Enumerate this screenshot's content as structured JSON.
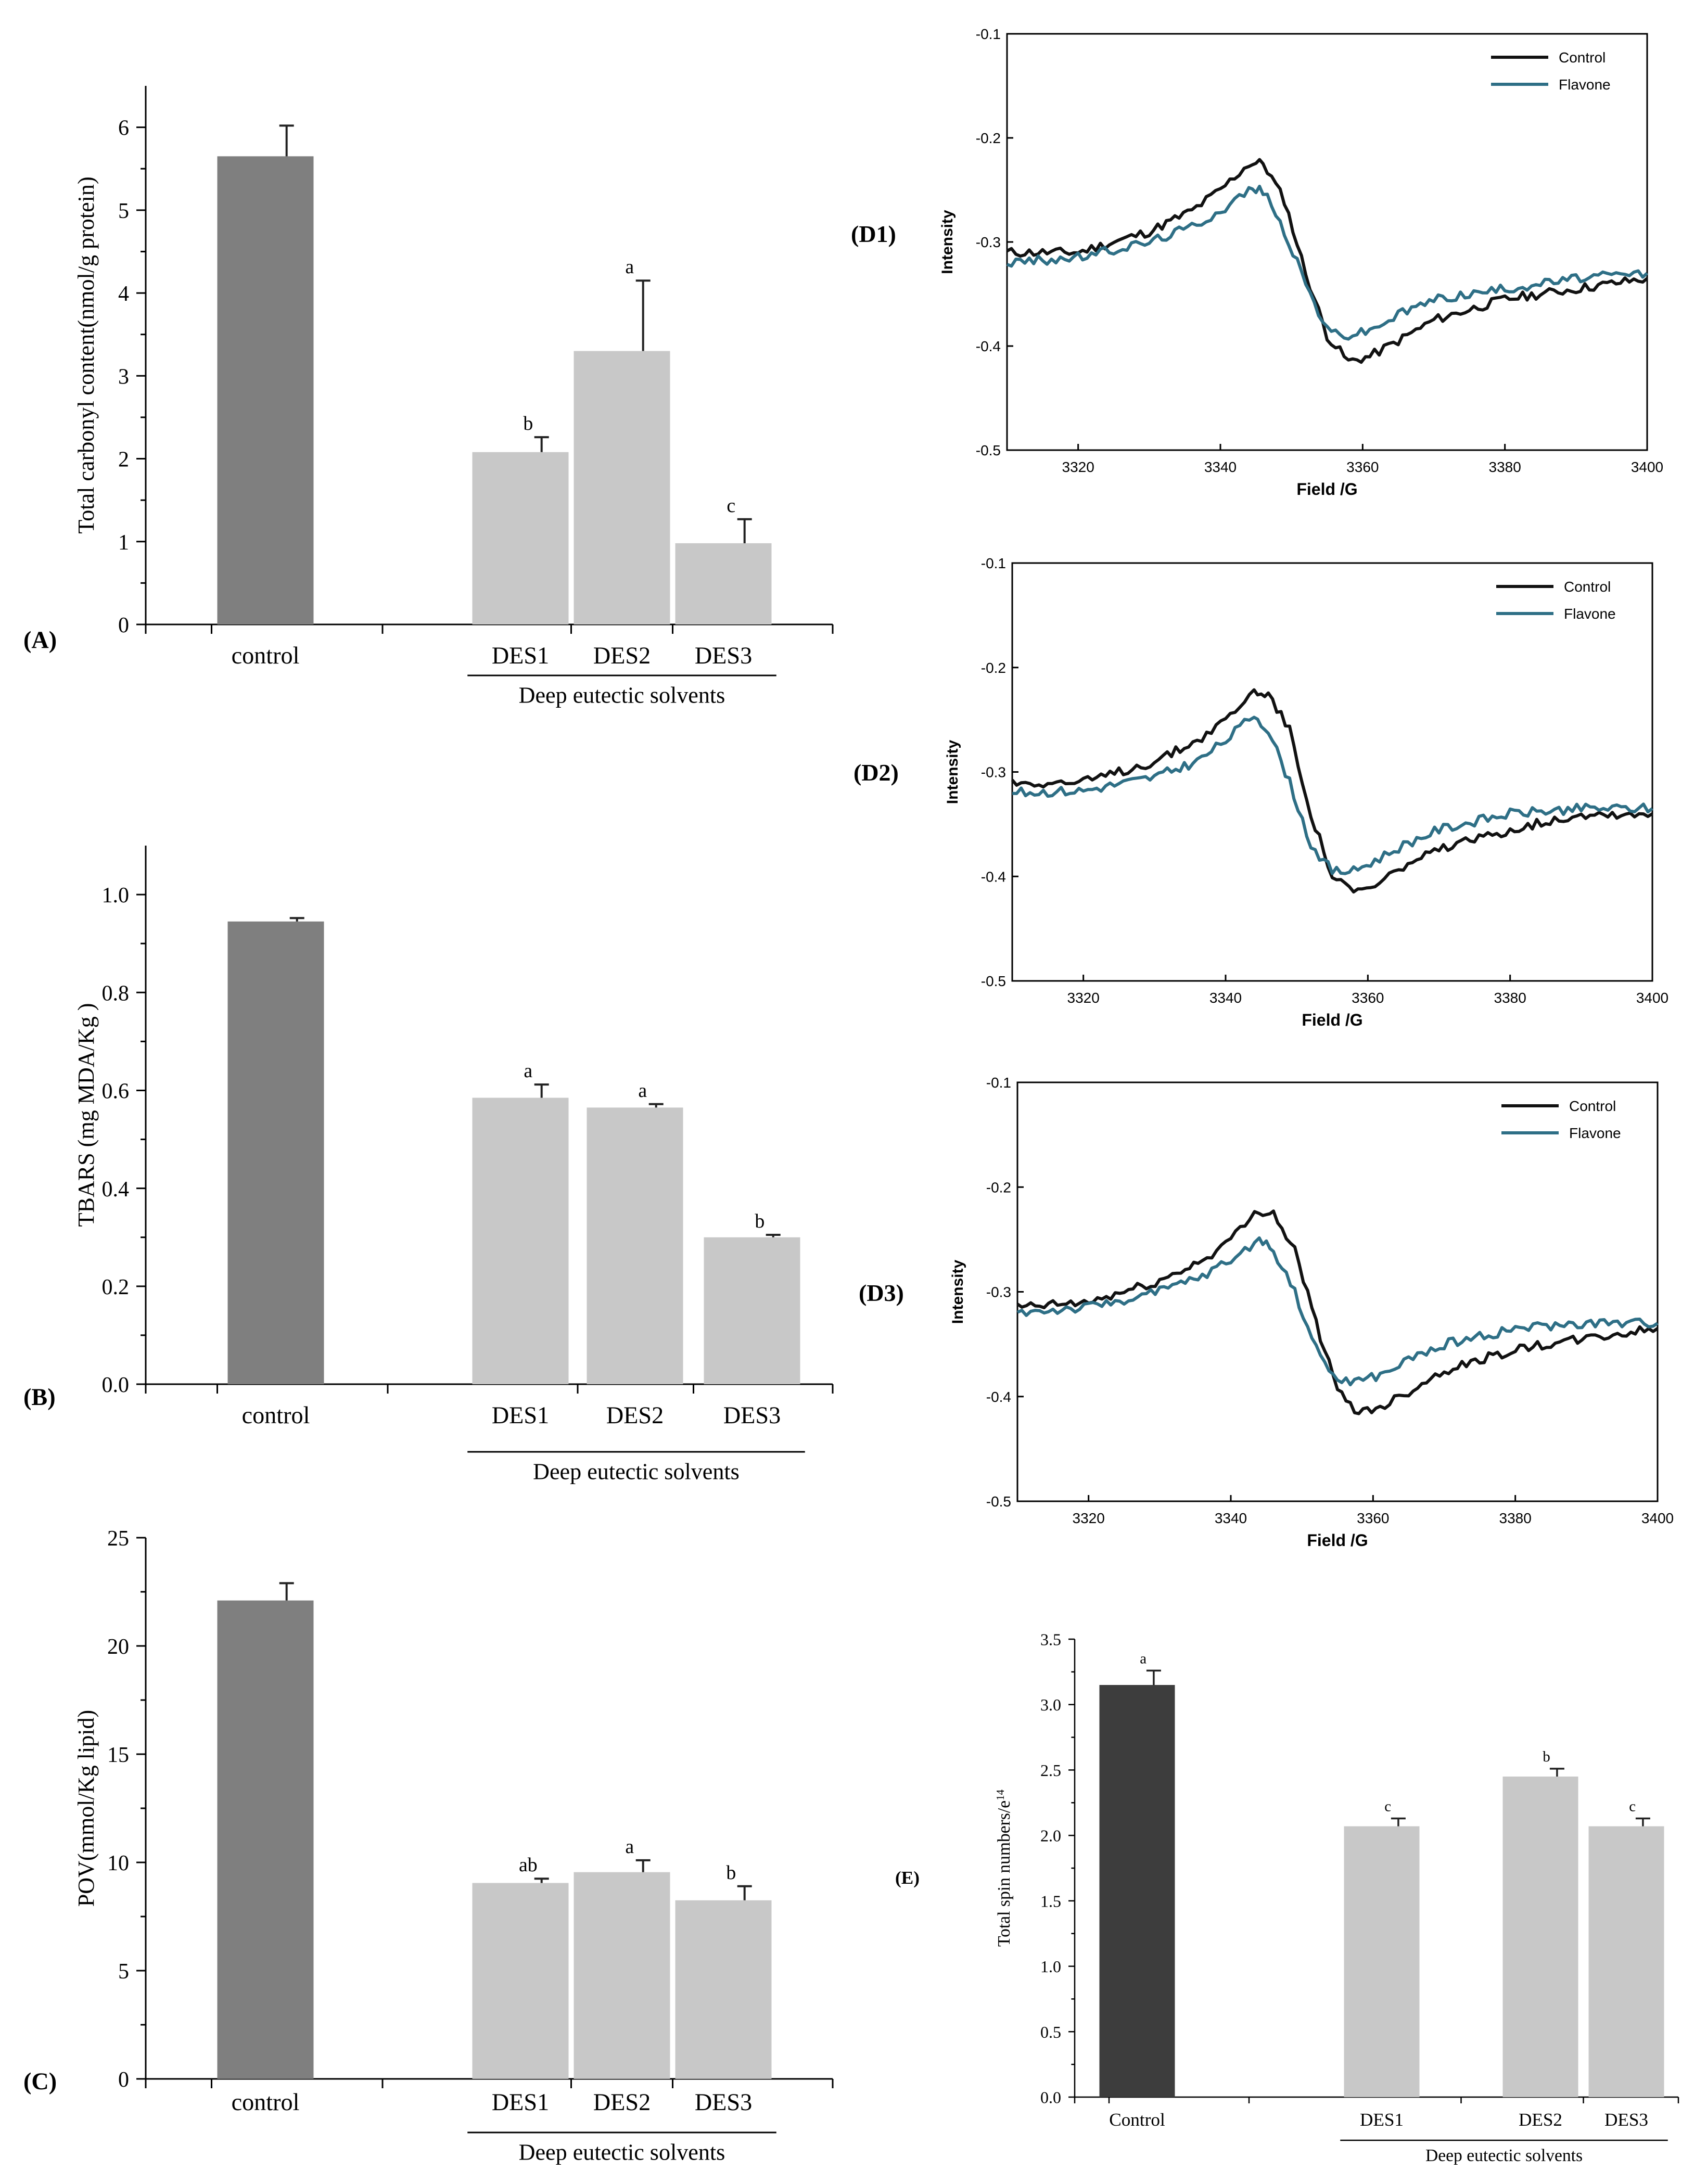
{
  "chart_data": [
    {
      "id": "A",
      "type": "bar",
      "panel_label": "(A)",
      "ylabel": "Total carbonyl content(nmol/g protein)",
      "ylim": [
        0,
        6.5
      ],
      "yticks": [
        0,
        1,
        2,
        3,
        4,
        5,
        6
      ],
      "categories": [
        "control",
        "DES1",
        "DES2",
        "DES3"
      ],
      "values": [
        5.65,
        2.08,
        3.3,
        0.98
      ],
      "errors": [
        0.37,
        0.18,
        0.85,
        0.29
      ],
      "significance": [
        "",
        "b",
        "a",
        "c"
      ],
      "group_label": "Deep eutectic solvents"
    },
    {
      "id": "B",
      "type": "bar",
      "panel_label": "(B)",
      "ylabel": "TBARS (mg MDA/Kg )",
      "ylim": [
        0,
        1.1
      ],
      "yticks": [
        "0.0",
        "0.2",
        "0.4",
        "0.6",
        "0.8",
        "1.0"
      ],
      "categories": [
        "control",
        "DES1",
        "DES2",
        "DES3"
      ],
      "values": [
        0.945,
        0.585,
        0.565,
        0.3
      ],
      "errors": [
        0.007,
        0.027,
        0.007,
        0.005
      ],
      "significance": [
        "",
        "a",
        "a",
        "b"
      ],
      "group_label": "Deep eutectic solvents"
    },
    {
      "id": "C",
      "type": "bar",
      "panel_label": "(C)",
      "ylabel": "POV(mmol/Kg lipid)",
      "ylim": [
        0,
        25
      ],
      "yticks": [
        0,
        5,
        10,
        15,
        20,
        25
      ],
      "categories": [
        "control",
        "DES1",
        "DES2",
        "DES3"
      ],
      "values": [
        22.1,
        9.05,
        9.55,
        8.25
      ],
      "errors": [
        0.8,
        0.2,
        0.55,
        0.65
      ],
      "significance": [
        "",
        "ab",
        "a",
        "b"
      ],
      "group_label": "Deep eutectic solvents"
    },
    {
      "id": "D1",
      "type": "line",
      "panel_label": "(D1)",
      "xlabel": "Field /G",
      "ylabel": "Intensity",
      "xlim": [
        3310,
        3400
      ],
      "ylim": [
        -0.5,
        -0.1
      ],
      "xticks": [
        3320,
        3340,
        3360,
        3380,
        3400
      ],
      "yticks": [
        "-0.1",
        "-0.2",
        "-0.3",
        "-0.4",
        "-0.5"
      ],
      "legend": [
        "Control",
        "Flavone"
      ],
      "legend_position": "top-right",
      "x": [
        3310,
        3320,
        3330,
        3336,
        3340,
        3344,
        3346,
        3349,
        3352,
        3355,
        3358,
        3361,
        3365,
        3370,
        3380,
        3390,
        3400
      ],
      "series": [
        {
          "name": "Control",
          "color": "#111111",
          "values": [
            -0.31,
            -0.31,
            -0.29,
            -0.27,
            -0.25,
            -0.225,
            -0.224,
            -0.26,
            -0.33,
            -0.39,
            -0.415,
            -0.41,
            -0.395,
            -0.375,
            -0.355,
            -0.345,
            -0.335
          ]
        },
        {
          "name": "Flavone",
          "color": "#2e6f86",
          "values": [
            -0.32,
            -0.315,
            -0.3,
            -0.285,
            -0.27,
            -0.25,
            -0.25,
            -0.29,
            -0.34,
            -0.385,
            -0.39,
            -0.385,
            -0.37,
            -0.355,
            -0.345,
            -0.335,
            -0.33
          ]
        }
      ]
    },
    {
      "id": "D2",
      "type": "line",
      "panel_label": "(D2)",
      "xlabel": "Field /G",
      "ylabel": "Intensity",
      "xlim": [
        3310,
        3400
      ],
      "ylim": [
        -0.5,
        -0.1
      ],
      "xticks": [
        3320,
        3340,
        3360,
        3380,
        3400
      ],
      "yticks": [
        "-0.1",
        "-0.2",
        "-0.3",
        "-0.4",
        "-0.5"
      ],
      "legend": [
        "Control",
        "Flavone"
      ],
      "legend_position": "top-right",
      "x": [
        3310,
        3320,
        3330,
        3336,
        3340,
        3344,
        3346,
        3349,
        3352,
        3355,
        3358,
        3361,
        3365,
        3370,
        3380,
        3390,
        3400
      ],
      "series": [
        {
          "name": "Control",
          "color": "#111111",
          "values": [
            -0.31,
            -0.31,
            -0.29,
            -0.27,
            -0.25,
            -0.223,
            -0.225,
            -0.26,
            -0.34,
            -0.4,
            -0.415,
            -0.41,
            -0.39,
            -0.375,
            -0.355,
            -0.34,
            -0.34
          ]
        },
        {
          "name": "Flavone",
          "color": "#2e6f86",
          "values": [
            -0.32,
            -0.318,
            -0.305,
            -0.29,
            -0.27,
            -0.245,
            -0.26,
            -0.31,
            -0.37,
            -0.395,
            -0.395,
            -0.385,
            -0.37,
            -0.355,
            -0.34,
            -0.335,
            -0.335
          ]
        }
      ]
    },
    {
      "id": "D3",
      "type": "line",
      "panel_label": "(D3)",
      "xlabel": "Field /G",
      "ylabel": "Intensity",
      "xlim": [
        3310,
        3400
      ],
      "ylim": [
        -0.5,
        -0.1
      ],
      "xticks": [
        3320,
        3340,
        3360,
        3380,
        3400
      ],
      "yticks": [
        "-0.1",
        "-0.2",
        "-0.3",
        "-0.4",
        "-0.5"
      ],
      "legend": [
        "Control",
        "Flavone"
      ],
      "legend_position": "top-right",
      "x": [
        3310,
        3320,
        3330,
        3336,
        3340,
        3344,
        3346,
        3349,
        3352,
        3355,
        3358,
        3361,
        3365,
        3370,
        3380,
        3390,
        3400
      ],
      "series": [
        {
          "name": "Control",
          "color": "#111111",
          "values": [
            -0.315,
            -0.31,
            -0.29,
            -0.27,
            -0.25,
            -0.222,
            -0.225,
            -0.26,
            -0.33,
            -0.395,
            -0.415,
            -0.41,
            -0.395,
            -0.375,
            -0.355,
            -0.345,
            -0.335
          ]
        },
        {
          "name": "Flavone",
          "color": "#2e6f86",
          "values": [
            -0.32,
            -0.315,
            -0.3,
            -0.285,
            -0.27,
            -0.25,
            -0.26,
            -0.3,
            -0.355,
            -0.385,
            -0.385,
            -0.38,
            -0.365,
            -0.35,
            -0.335,
            -0.33,
            -0.33
          ]
        }
      ]
    },
    {
      "id": "E",
      "type": "bar",
      "panel_label": "(E)",
      "ylabel": "Total spin numbers/e",
      "ylabel_superscript": "14",
      "ylim": [
        0,
        3.5
      ],
      "yticks": [
        "0.0",
        "0.5",
        "1.0",
        "1.5",
        "2.0",
        "2.5",
        "3.0",
        "3.5"
      ],
      "categories": [
        "Control",
        "DES1",
        "DES2",
        "DES3"
      ],
      "values": [
        3.15,
        2.07,
        2.45,
        2.07
      ],
      "errors": [
        0.11,
        0.06,
        0.06,
        0.06
      ],
      "significance": [
        "a",
        "c",
        "b",
        "c"
      ],
      "group_label": "Deep eutectic solvents"
    }
  ]
}
